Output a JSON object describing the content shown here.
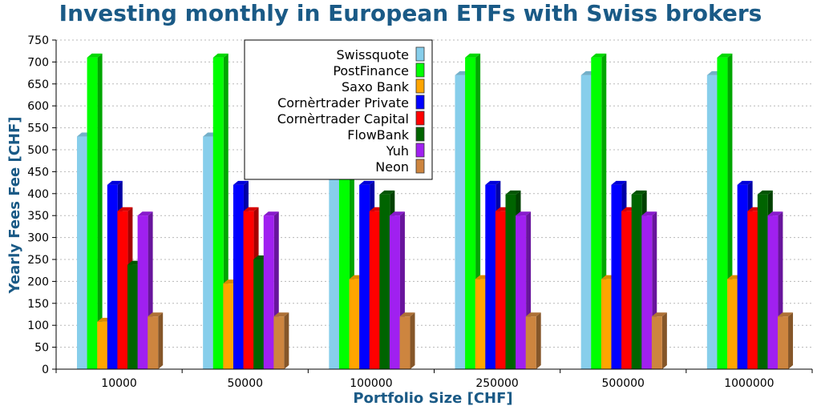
{
  "chart_data": {
    "type": "bar",
    "title": "Investing monthly in European ETFs with Swiss brokers",
    "xlabel": "Portfolio Size [CHF]",
    "ylabel": "Yearly Fees Fee [CHF]",
    "ylim": [
      0,
      750
    ],
    "yticks": [
      0,
      50,
      100,
      150,
      200,
      250,
      300,
      350,
      400,
      450,
      500,
      550,
      600,
      650,
      700,
      750
    ],
    "grid": true,
    "legend_position": "top-center",
    "categories": [
      "10000",
      "50000",
      "100000",
      "250000",
      "500000",
      "1000000"
    ],
    "series": [
      {
        "name": "Swissquote",
        "color": "#87ceeb",
        "values": [
          530,
          530,
          500,
          670,
          670,
          670
        ]
      },
      {
        "name": "PostFinance",
        "color": "#00ff00",
        "values": [
          710,
          710,
          710,
          710,
          710,
          710
        ]
      },
      {
        "name": "Saxo Bank",
        "color": "#ffa500",
        "values": [
          108,
          195,
          205,
          205,
          205,
          205
        ]
      },
      {
        "name": "Cornèrtrader Private",
        "color": "#0000ff",
        "values": [
          420,
          420,
          420,
          420,
          420,
          420
        ]
      },
      {
        "name": "Cornèrtrader Capital",
        "color": "#ff0000",
        "values": [
          360,
          360,
          360,
          360,
          360,
          360
        ]
      },
      {
        "name": "FlowBank",
        "color": "#006400",
        "values": [
          238,
          250,
          398,
          398,
          398,
          398
        ]
      },
      {
        "name": "Yuh",
        "color": "#a020f0",
        "values": [
          350,
          350,
          350,
          350,
          350,
          350
        ]
      },
      {
        "name": "Neon",
        "color": "#cd853f",
        "values": [
          120,
          120,
          120,
          120,
          120,
          120
        ]
      }
    ]
  }
}
